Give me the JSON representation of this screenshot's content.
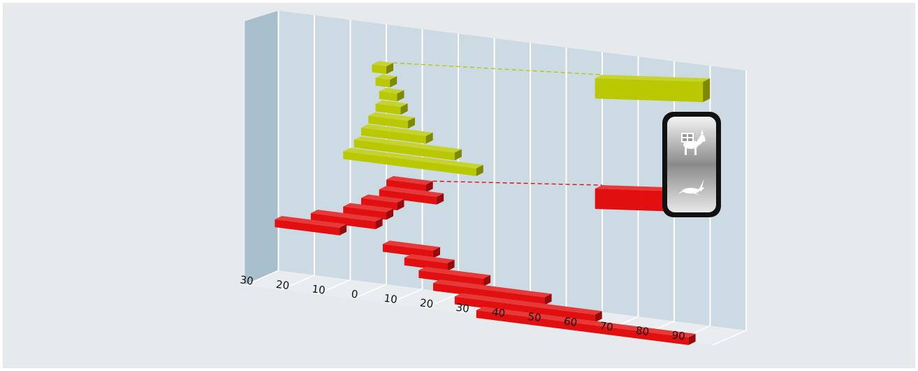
{
  "chart_data": {
    "type": "bar",
    "orientation": "horizontal",
    "style": "3d-oblique",
    "grid": true,
    "x_ticks": [
      "30",
      "20",
      "10",
      "0",
      "10",
      "20",
      "30",
      "40",
      "50",
      "60",
      "70",
      "80",
      "90"
    ],
    "xlim": [
      -30,
      100
    ],
    "series": [
      {
        "icon": "donkey-icon",
        "color": "#b9c800",
        "segments": [
          {
            "start": -4,
            "end": 0
          },
          {
            "start": -3,
            "end": 1
          },
          {
            "start": -2,
            "end": 3
          },
          {
            "start": -3,
            "end": 4
          },
          {
            "start": -5,
            "end": 6
          },
          {
            "start": -7,
            "end": 11
          },
          {
            "start": -9,
            "end": 19
          },
          {
            "start": -12,
            "end": 25
          }
        ],
        "summary": {
          "start": 58,
          "end": 88
        }
      },
      {
        "icon": "hare-icon",
        "color": "#e10f0f",
        "segments": [
          {
            "start": 0,
            "end": 11
          },
          {
            "start": -2,
            "end": 14
          },
          {
            "start": -7,
            "end": 3
          },
          {
            "start": -12,
            "end": 0
          },
          {
            "start": -21,
            "end": -3
          },
          {
            "start": -31,
            "end": -13
          },
          {
            "start": -1,
            "end": 13
          },
          {
            "start": 5,
            "end": 17
          },
          {
            "start": 9,
            "end": 27
          },
          {
            "start": 13,
            "end": 44
          },
          {
            "start": 19,
            "end": 58
          },
          {
            "start": 25,
            "end": 84
          }
        ],
        "summary": {
          "start": 58,
          "end": 88
        }
      }
    ],
    "legend": {
      "placement": "right",
      "items": [
        {
          "icon": "donkey-icon"
        },
        {
          "icon": "hare-icon"
        }
      ]
    }
  }
}
